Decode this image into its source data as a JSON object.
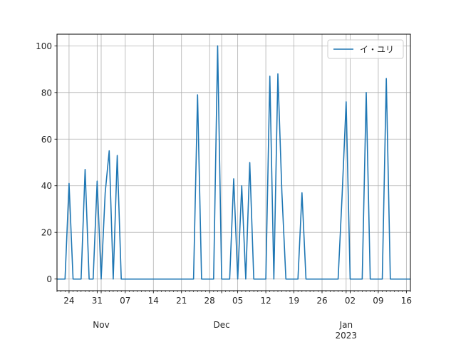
{
  "chart_data": {
    "type": "line",
    "x_axis": {
      "type": "date",
      "range": [
        "2022-10-21",
        "2023-01-17"
      ],
      "major_ticks": [
        {
          "date": "2022-10-24",
          "label": "24"
        },
        {
          "date": "2022-10-31",
          "label": "31"
        },
        {
          "date": "2022-11-07",
          "label": "07"
        },
        {
          "date": "2022-11-14",
          "label": "14"
        },
        {
          "date": "2022-11-21",
          "label": "21"
        },
        {
          "date": "2022-11-28",
          "label": "28"
        },
        {
          "date": "2022-12-05",
          "label": "05"
        },
        {
          "date": "2022-12-12",
          "label": "12"
        },
        {
          "date": "2022-12-19",
          "label": "19"
        },
        {
          "date": "2022-12-26",
          "label": "26"
        },
        {
          "date": "2023-01-02",
          "label": "02"
        },
        {
          "date": "2023-01-09",
          "label": "09"
        },
        {
          "date": "2023-01-16",
          "label": "16"
        }
      ],
      "month_ticks": [
        {
          "date": "2022-11-01",
          "label": "Nov",
          "year": ""
        },
        {
          "date": "2022-12-01",
          "label": "Dec",
          "year": ""
        },
        {
          "date": "2023-01-01",
          "label": "Jan",
          "year": "2023"
        }
      ]
    },
    "y_axis": {
      "range": [
        -5,
        105
      ],
      "ticks": [
        0,
        20,
        40,
        60,
        80,
        100
      ]
    },
    "grid": true,
    "legend": {
      "placement": "top-right"
    },
    "series": [
      {
        "name": "イ・ユリ",
        "color": "#1f77b4",
        "points": [
          [
            "2022-10-21",
            0
          ],
          [
            "2022-10-22",
            0
          ],
          [
            "2022-10-23",
            0
          ],
          [
            "2022-10-24",
            41
          ],
          [
            "2022-10-25",
            0
          ],
          [
            "2022-10-26",
            0
          ],
          [
            "2022-10-27",
            0
          ],
          [
            "2022-10-28",
            47
          ],
          [
            "2022-10-29",
            0
          ],
          [
            "2022-10-30",
            0
          ],
          [
            "2022-10-31",
            42
          ],
          [
            "2022-11-01",
            0
          ],
          [
            "2022-11-02",
            37
          ],
          [
            "2022-11-03",
            55
          ],
          [
            "2022-11-04",
            0
          ],
          [
            "2022-11-05",
            53
          ],
          [
            "2022-11-06",
            0
          ],
          [
            "2022-11-07",
            0
          ],
          [
            "2022-11-08",
            0
          ],
          [
            "2022-11-09",
            0
          ],
          [
            "2022-11-10",
            0
          ],
          [
            "2022-11-11",
            0
          ],
          [
            "2022-11-12",
            0
          ],
          [
            "2022-11-13",
            0
          ],
          [
            "2022-11-14",
            0
          ],
          [
            "2022-11-15",
            0
          ],
          [
            "2022-11-16",
            0
          ],
          [
            "2022-11-17",
            0
          ],
          [
            "2022-11-18",
            0
          ],
          [
            "2022-11-19",
            0
          ],
          [
            "2022-11-20",
            0
          ],
          [
            "2022-11-21",
            0
          ],
          [
            "2022-11-22",
            0
          ],
          [
            "2022-11-23",
            0
          ],
          [
            "2022-11-24",
            0
          ],
          [
            "2022-11-25",
            79
          ],
          [
            "2022-11-26",
            0
          ],
          [
            "2022-11-27",
            0
          ],
          [
            "2022-11-28",
            0
          ],
          [
            "2022-11-29",
            0
          ],
          [
            "2022-11-30",
            100
          ],
          [
            "2022-12-01",
            0
          ],
          [
            "2022-12-02",
            0
          ],
          [
            "2022-12-03",
            0
          ],
          [
            "2022-12-04",
            43
          ],
          [
            "2022-12-05",
            0
          ],
          [
            "2022-12-06",
            40
          ],
          [
            "2022-12-07",
            0
          ],
          [
            "2022-12-08",
            50
          ],
          [
            "2022-12-09",
            0
          ],
          [
            "2022-12-10",
            0
          ],
          [
            "2022-12-11",
            0
          ],
          [
            "2022-12-12",
            0
          ],
          [
            "2022-12-13",
            87
          ],
          [
            "2022-12-14",
            0
          ],
          [
            "2022-12-15",
            88
          ],
          [
            "2022-12-16",
            37
          ],
          [
            "2022-12-17",
            0
          ],
          [
            "2022-12-18",
            0
          ],
          [
            "2022-12-19",
            0
          ],
          [
            "2022-12-20",
            0
          ],
          [
            "2022-12-21",
            37
          ],
          [
            "2022-12-22",
            0
          ],
          [
            "2022-12-23",
            0
          ],
          [
            "2022-12-24",
            0
          ],
          [
            "2022-12-25",
            0
          ],
          [
            "2022-12-26",
            0
          ],
          [
            "2022-12-27",
            0
          ],
          [
            "2022-12-28",
            0
          ],
          [
            "2022-12-29",
            0
          ],
          [
            "2022-12-30",
            0
          ],
          [
            "2022-12-31",
            36
          ],
          [
            "2023-01-01",
            76
          ],
          [
            "2023-01-02",
            0
          ],
          [
            "2023-01-03",
            0
          ],
          [
            "2023-01-04",
            0
          ],
          [
            "2023-01-05",
            0
          ],
          [
            "2023-01-06",
            80
          ],
          [
            "2023-01-07",
            0
          ],
          [
            "2023-01-08",
            0
          ],
          [
            "2023-01-09",
            0
          ],
          [
            "2023-01-10",
            0
          ],
          [
            "2023-01-11",
            86
          ],
          [
            "2023-01-12",
            0
          ],
          [
            "2023-01-13",
            0
          ],
          [
            "2023-01-14",
            0
          ],
          [
            "2023-01-15",
            0
          ],
          [
            "2023-01-16",
            0
          ],
          [
            "2023-01-17",
            0
          ]
        ]
      }
    ]
  }
}
